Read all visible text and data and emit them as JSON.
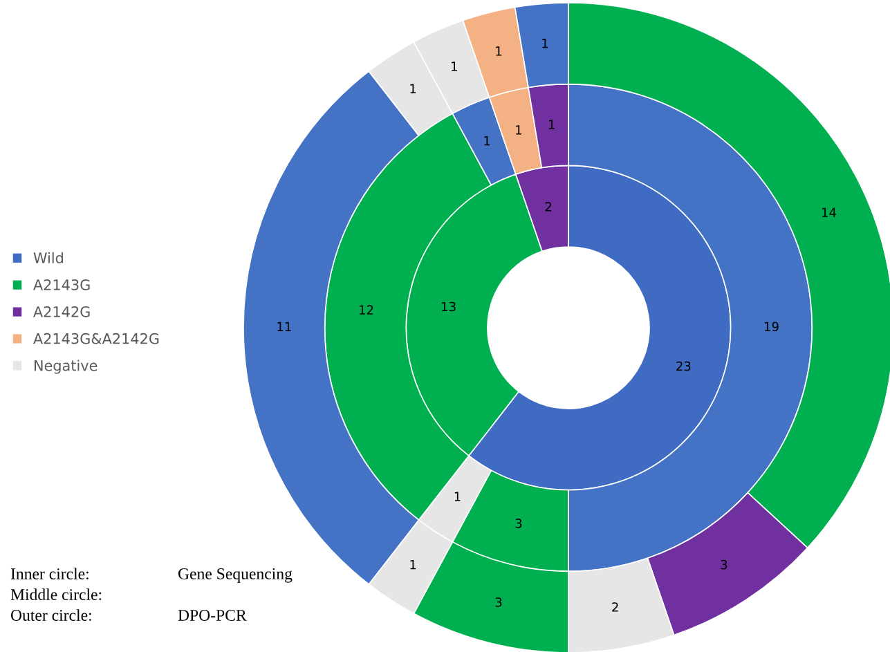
{
  "chart_data": {
    "type": "donut",
    "legend": "left",
    "data_labels": true,
    "categories": [
      "Wild",
      "A2143G",
      "A2142G",
      null,
      null,
      null,
      null,
      null,
      "A2143G&A2142G",
      null,
      null,
      null,
      "Negative",
      null,
      null,
      null,
      null,
      null,
      null,
      null
    ],
    "colors": [
      "#3f6cc2",
      "#00b050",
      "#7030a0",
      "#4472c4",
      "#00b050",
      "#e7e6e6",
      "#00b050",
      "#4472c4",
      "#f4b183",
      "#7030a0",
      "#00b050",
      "#7030a0",
      "#e7e6e6",
      "#00b050",
      "#e7e6e6",
      "#4472c4",
      "#e7e6e6",
      "#e7e6e6",
      "#f4b183",
      "#4472c4"
    ],
    "series": [
      {
        "values": [
          23,
          13,
          2,
          null,
          null,
          null,
          null,
          null,
          null,
          null,
          null,
          null,
          null,
          null,
          null,
          null,
          null,
          null,
          null,
          null
        ]
      },
      {
        "values": [
          null,
          null,
          null,
          19,
          3,
          1,
          12,
          1,
          1,
          1,
          null,
          null,
          null,
          null,
          null,
          null,
          null,
          null,
          null,
          null
        ]
      },
      {
        "values": [
          null,
          null,
          null,
          null,
          null,
          null,
          null,
          null,
          null,
          null,
          14,
          3,
          2,
          3,
          1,
          11,
          1,
          1,
          1,
          1
        ]
      }
    ],
    "annotations": [
      "Inner circle:",
      "Gene Sequencing",
      "Middle circle:",
      "Outer circle:",
      "DPO-PCR"
    ]
  }
}
